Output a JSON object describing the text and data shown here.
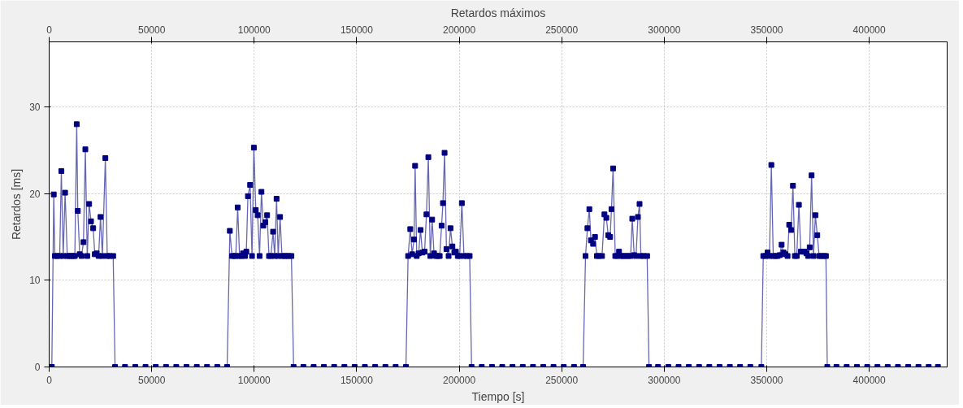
{
  "chart_data": {
    "type": "line",
    "title": "Retardos máximos",
    "xlabel": "Tiempo [s]",
    "ylabel": "Retardos [ms]",
    "xlim": [
      0,
      438000
    ],
    "xticks": [
      0,
      50000,
      100000,
      150000,
      200000,
      250000,
      300000,
      350000,
      400000
    ],
    "x2lim": [
      0,
      438000
    ],
    "x2ticks": [
      0,
      50000,
      100000,
      150000,
      200000,
      250000,
      300000,
      350000,
      400000
    ],
    "ylim": [
      0,
      37.5
    ],
    "yticks": [
      0,
      10,
      20,
      30
    ],
    "grid": true,
    "marker": "square",
    "line_style": "solid",
    "series": [
      {
        "color": "#000080",
        "x": [
          0,
          1300,
          2240,
          2770,
          3820,
          5140,
          5930,
          6850,
          7770,
          8830,
          9750,
          10800,
          11720,
          12520,
          13440,
          13970,
          14890,
          15810,
          16730,
          17650,
          18580,
          19500,
          20420,
          21470,
          22260,
          23190,
          24110,
          25040,
          25960,
          27410,
          28330,
          29510,
          31220,
          32140,
          37000,
          42000,
          47000,
          52000,
          57000,
          62000,
          67000,
          72000,
          77000,
          82000,
          86810,
          88130,
          89180,
          90240,
          91030,
          91950,
          92870,
          93790,
          94590,
          95510,
          96170,
          96950,
          98010,
          98930,
          99850,
          100780,
          101700,
          102620,
          103540,
          104460,
          105390,
          106310,
          107230,
          108150,
          109210,
          110000,
          110920,
          111710,
          112630,
          113550,
          114740,
          115790,
          116850,
          118160,
          119220,
          124000,
          129000,
          134000,
          139000,
          144000,
          149000,
          154000,
          159000,
          164000,
          169000,
          174020,
          175070,
          176130,
          177050,
          177970,
          178500,
          179290,
          180210,
          181130,
          182060,
          183110,
          184030,
          184950,
          185880,
          186800,
          187720,
          188640,
          189560,
          190490,
          191410,
          192070,
          192860,
          193780,
          194830,
          195760,
          196680,
          197600,
          198390,
          199310,
          200240,
          201290,
          202340,
          203790,
          205110,
          206030,
          211000,
          216000,
          221000,
          226000,
          231000,
          236000,
          241000,
          246000,
          251000,
          256000,
          260440,
          261620,
          262540,
          263470,
          264260,
          265310,
          266230,
          267160,
          268080,
          269660,
          270840,
          271770,
          272690,
          273610,
          274270,
          275060,
          276110,
          277040,
          277960,
          278880,
          280070,
          281250,
          282440,
          283620,
          284410,
          285340,
          286260,
          287180,
          287970,
          288630,
          289950,
          291660,
          292580,
          297000,
          302000,
          307000,
          312000,
          317000,
          322000,
          327000,
          332000,
          337000,
          342000,
          347380,
          348310,
          349350,
          350410,
          351330,
          352250,
          353180,
          354230,
          355290,
          356340,
          357260,
          358180,
          359110,
          360160,
          360950,
          361870,
          362790,
          363720,
          364640,
          365690,
          366620,
          367540,
          368460,
          369380,
          370170,
          370960,
          371880,
          372800,
          373730,
          374650,
          375570,
          376630,
          377940,
          378870,
          379530,
          384000,
          389000,
          394000,
          399000,
          404000,
          409000,
          414000,
          419000,
          424000,
          429000,
          433500
        ],
        "values": [
          0,
          0,
          19.9,
          12.8,
          12.8,
          12.8,
          22.6,
          12.8,
          20.1,
          12.8,
          12.8,
          12.8,
          12.8,
          12.8,
          28.0,
          18.0,
          13.0,
          12.8,
          14.4,
          25.1,
          12.8,
          18.8,
          16.8,
          16.0,
          13.0,
          13.1,
          12.8,
          17.3,
          12.8,
          24.1,
          12.8,
          12.8,
          12.8,
          0,
          0,
          0,
          0,
          0,
          0,
          0,
          0,
          0,
          0,
          0,
          0,
          15.7,
          12.8,
          12.8,
          12.8,
          18.4,
          12.8,
          12.8,
          13.1,
          12.8,
          13.3,
          19.7,
          21.0,
          12.8,
          25.3,
          18.1,
          17.5,
          12.8,
          20.2,
          16.3,
          16.7,
          17.5,
          12.8,
          12.8,
          15.6,
          12.8,
          19.4,
          12.8,
          17.3,
          12.8,
          12.8,
          12.8,
          12.8,
          12.8,
          0,
          0,
          0,
          0,
          0,
          0,
          0,
          0,
          0,
          0,
          0,
          0,
          12.8,
          15.9,
          13.0,
          14.7,
          23.2,
          12.8,
          13.1,
          15.8,
          13.2,
          13.3,
          17.6,
          24.2,
          12.8,
          17.0,
          13.1,
          12.8,
          12.8,
          12.8,
          16.3,
          18.9,
          24.7,
          13.6,
          12.8,
          16.0,
          13.9,
          13.2,
          13.3,
          12.8,
          12.8,
          18.9,
          12.8,
          12.8,
          12.8,
          0,
          0,
          0,
          0,
          0,
          0,
          0,
          0,
          0,
          0,
          0,
          0,
          12.8,
          16.0,
          18.2,
          14.6,
          14.2,
          15.0,
          12.8,
          12.8,
          12.8,
          17.6,
          17.2,
          15.2,
          15.0,
          18.2,
          22.9,
          12.8,
          12.8,
          13.3,
          12.8,
          12.8,
          12.8,
          12.8,
          12.8,
          17.1,
          12.9,
          12.8,
          17.3,
          18.8,
          12.8,
          12.8,
          12.8,
          0,
          0,
          0,
          0,
          0,
          0,
          0,
          0,
          0,
          0,
          0,
          0,
          12.8,
          12.8,
          13.2,
          12.8,
          23.3,
          12.8,
          12.8,
          12.8,
          12.9,
          14.1,
          13.2,
          13.0,
          12.8,
          16.4,
          15.8,
          20.9,
          12.8,
          12.8,
          18.7,
          13.3,
          13.3,
          13.3,
          13.1,
          12.8,
          13.8,
          22.1,
          12.8,
          17.5,
          15.2,
          12.8,
          12.8,
          12.8,
          12.8,
          0,
          0,
          0,
          0,
          0,
          0,
          0,
          0,
          0,
          0,
          0,
          0
        ]
      }
    ]
  }
}
